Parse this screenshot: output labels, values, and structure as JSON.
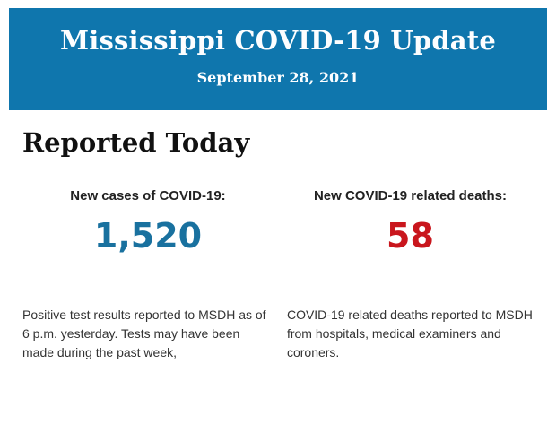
{
  "theme": {
    "header_bg": "#0f76ad",
    "header_text": "#fdfeff",
    "cases_color": "#19719f",
    "deaths_color": "#c9161d"
  },
  "header": {
    "title": "Mississippi COVID-19 Update",
    "date": "September 28, 2021"
  },
  "section": {
    "heading": "Reported Today"
  },
  "stats": [
    {
      "label": "New cases of COVID-19:",
      "value": "1,520",
      "description": "Positive test results reported to MSDH as of 6 p.m. yesterday. Tests may have been made during the past week,"
    },
    {
      "label": "New COVID-19 related deaths:",
      "value": "58",
      "description": "COVID-19 related deaths reported to MSDH from hospitals, medical examiners and coroners."
    }
  ]
}
